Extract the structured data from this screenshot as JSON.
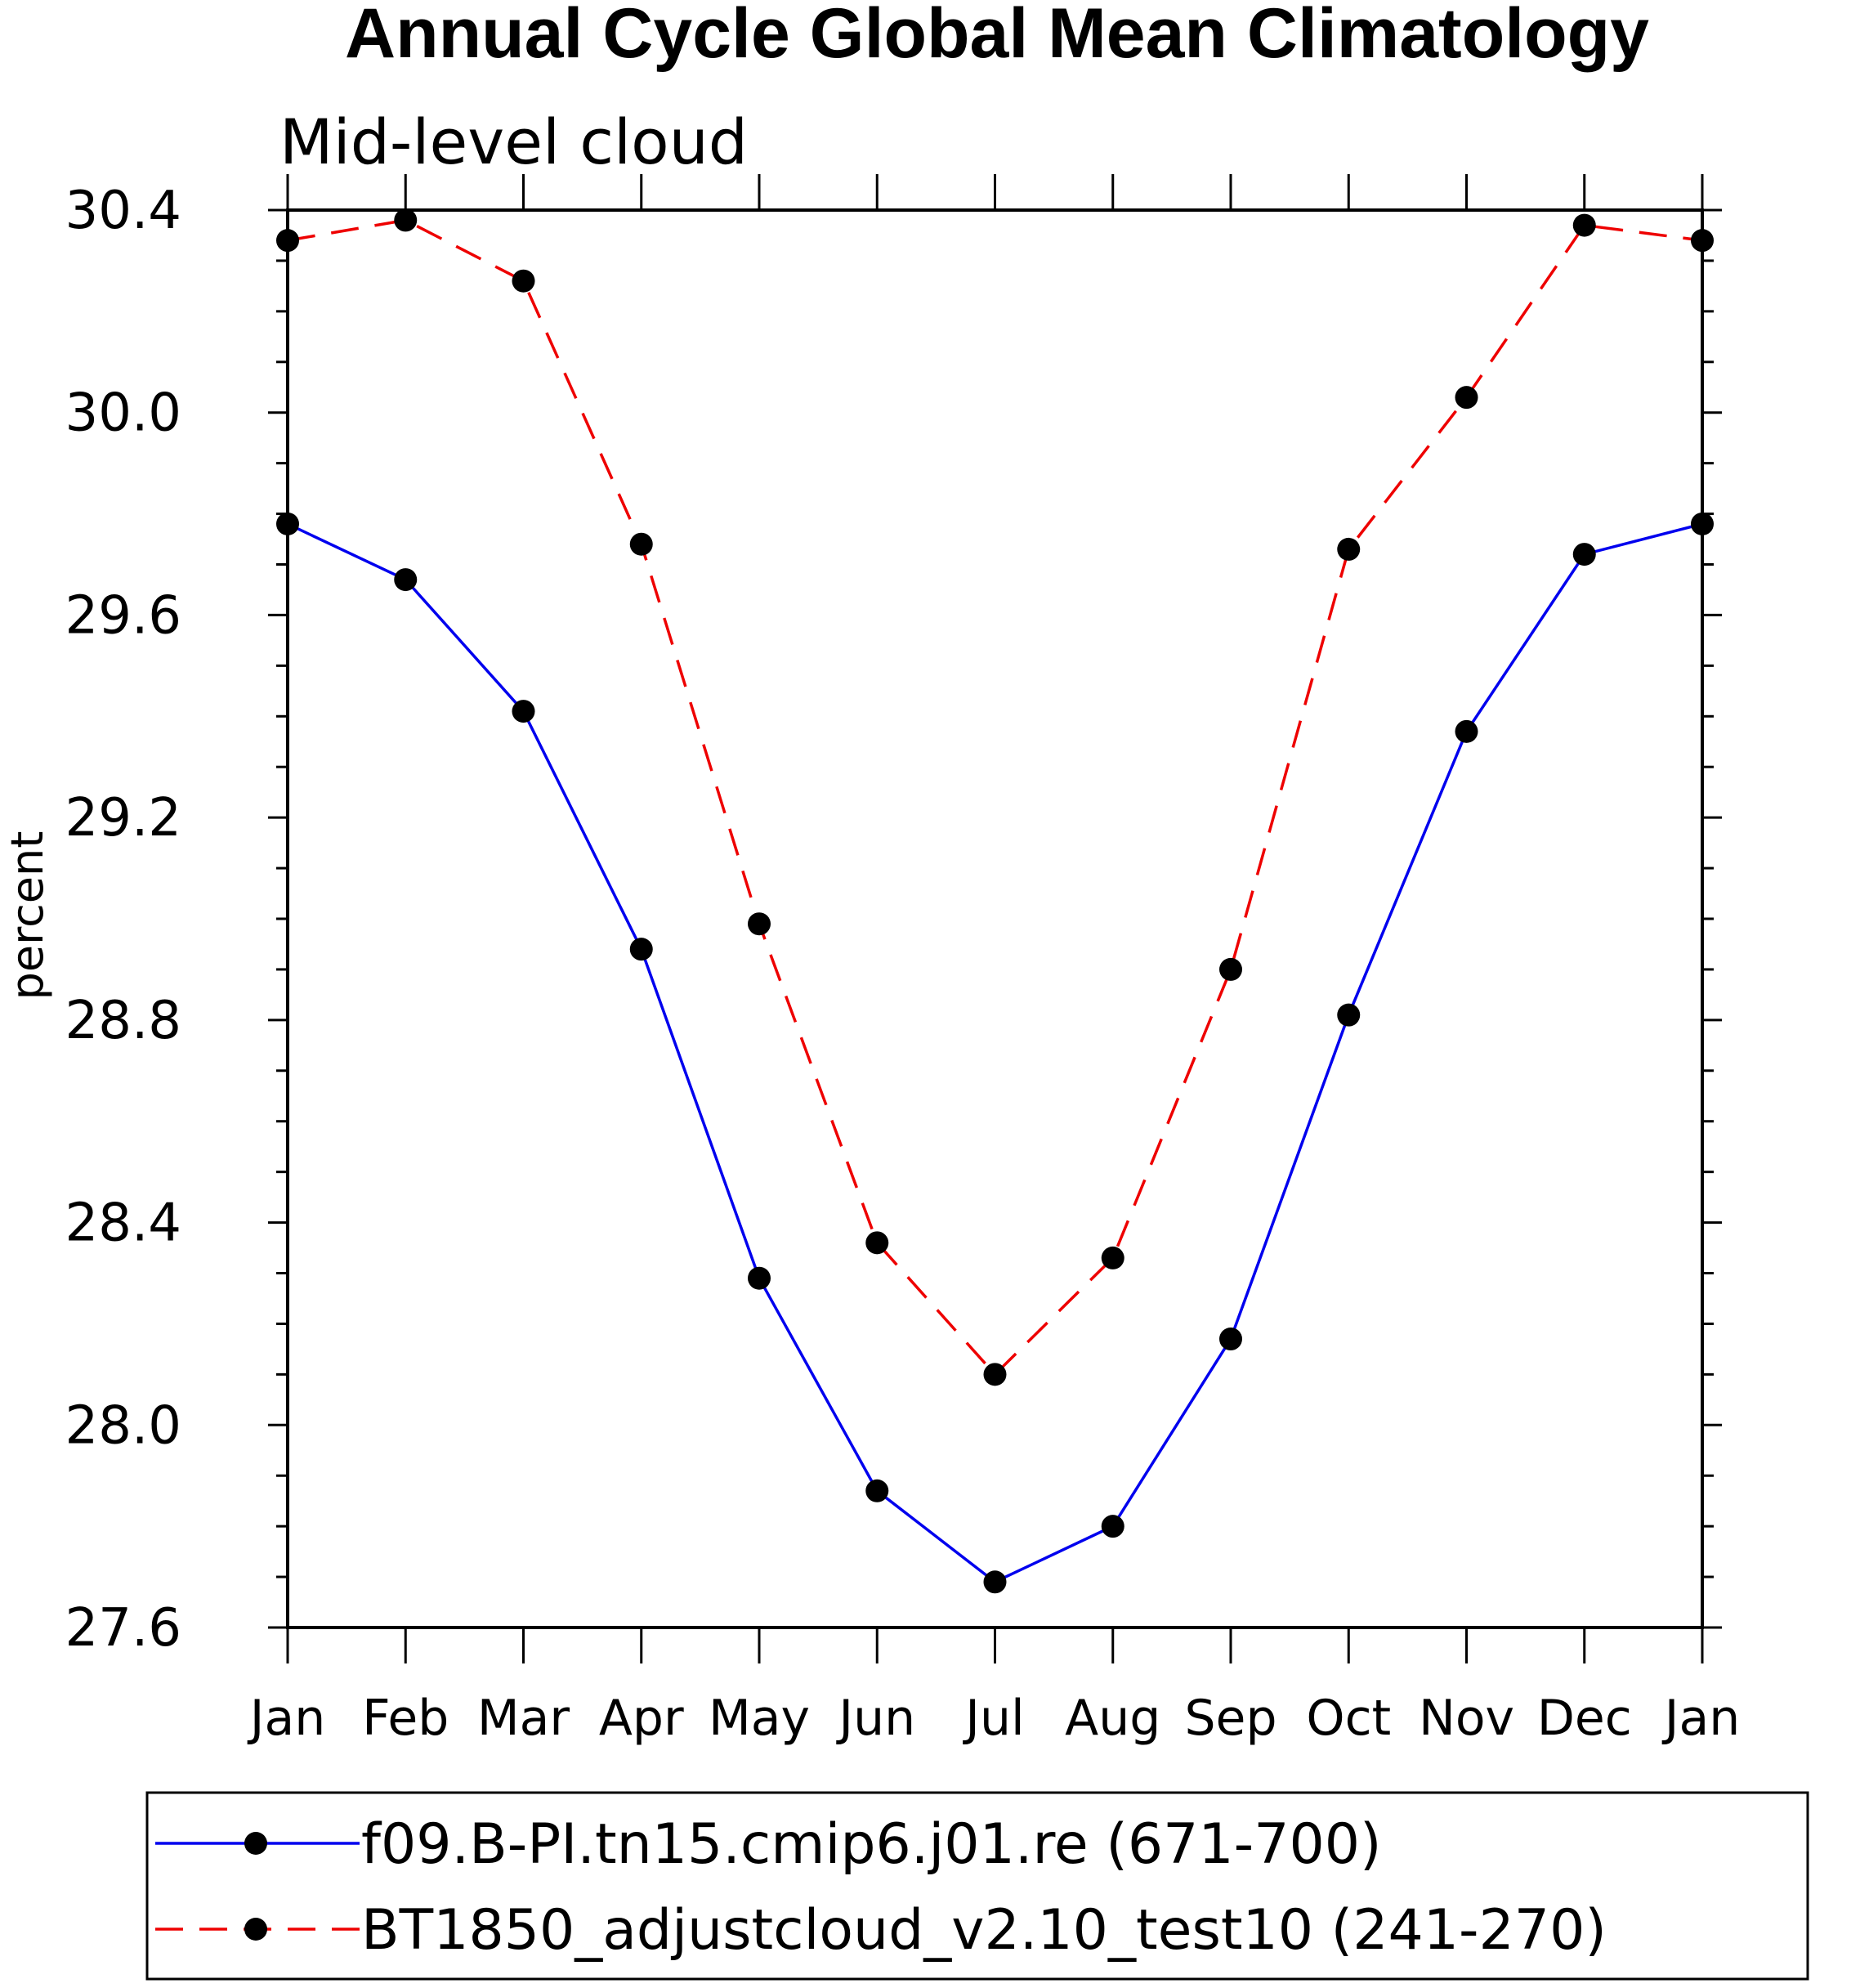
{
  "chart_data": {
    "type": "line",
    "title": "Annual Cycle Global Mean Climatology",
    "subtitle": "Mid-level cloud",
    "xlabel": "",
    "ylabel": "percent",
    "categories": [
      "Jan",
      "Feb",
      "Mar",
      "Apr",
      "May",
      "Jun",
      "Jul",
      "Aug",
      "Sep",
      "Oct",
      "Nov",
      "Dec",
      "Jan"
    ],
    "ylim": [
      27.6,
      30.4
    ],
    "yticks": [
      "27.6",
      "28.0",
      "28.4",
      "28.8",
      "29.2",
      "29.6",
      "30.0",
      "30.4"
    ],
    "grid": false,
    "legend_position": "bottom",
    "series": [
      {
        "name": "f09.B-PI.tn15.cmip6.j01.re (671-700)",
        "color": "#0000ee",
        "line_style": "solid",
        "marker": "filled-circle",
        "values": [
          29.78,
          29.67,
          29.41,
          28.94,
          28.29,
          27.87,
          27.69,
          27.8,
          28.17,
          28.81,
          29.37,
          29.72,
          29.78
        ]
      },
      {
        "name": "BT1850_adjustcloud_v2.10_test10 (241-270)",
        "color": "#ee0000",
        "line_style": "dashed",
        "marker": "filled-circle",
        "values": [
          30.34,
          30.38,
          30.26,
          29.74,
          28.99,
          28.36,
          28.1,
          28.33,
          28.9,
          29.73,
          30.03,
          30.37,
          30.34
        ]
      }
    ]
  }
}
